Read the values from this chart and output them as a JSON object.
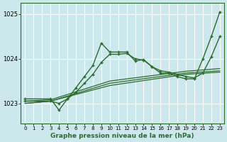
{
  "bg_color": "#cce8ec",
  "grid_color": "#ffffff",
  "line_color": "#2d6a2d",
  "xlabel": "Graphe pression niveau de la mer (hPa)",
  "xlim": [
    -0.5,
    23.5
  ],
  "ylim": [
    1022.55,
    1025.25
  ],
  "yticks": [
    1023,
    1024,
    1025
  ],
  "xticks": [
    0,
    1,
    2,
    3,
    4,
    5,
    6,
    7,
    8,
    9,
    10,
    11,
    12,
    13,
    14,
    15,
    16,
    17,
    18,
    19,
    20,
    21,
    22,
    23
  ],
  "series": [
    {
      "x": [
        0,
        3,
        10,
        19,
        23
      ],
      "y": [
        1023.0,
        1023.05,
        1023.4,
        1023.65,
        1023.7
      ],
      "lw": 0.9,
      "marker": null
    },
    {
      "x": [
        0,
        3,
        10,
        19,
        23
      ],
      "y": [
        1023.0,
        1023.05,
        1023.45,
        1023.68,
        1023.73
      ],
      "lw": 0.9,
      "marker": null
    },
    {
      "x": [
        0,
        3,
        10,
        19,
        23
      ],
      "y": [
        1023.05,
        1023.08,
        1023.5,
        1023.72,
        1023.78
      ],
      "lw": 0.9,
      "marker": null
    },
    {
      "x": [
        0,
        3,
        4,
        5,
        6,
        7,
        8,
        9,
        10,
        11,
        12,
        13,
        14,
        15,
        16,
        17,
        18,
        19,
        20,
        21,
        22,
        23
      ],
      "y": [
        1023.1,
        1023.1,
        1022.85,
        1023.1,
        1023.35,
        1023.6,
        1023.85,
        1024.35,
        1024.15,
        1024.15,
        1024.15,
        1023.95,
        1023.98,
        1023.82,
        1023.68,
        1023.68,
        1023.6,
        1023.55,
        1023.55,
        1024.0,
        1024.5,
        1025.05
      ],
      "lw": 1.0,
      "marker": "+"
    },
    {
      "x": [
        0,
        3,
        4,
        5,
        6,
        7,
        8,
        9,
        10,
        11,
        12,
        13,
        14,
        15,
        16,
        17,
        18,
        19,
        20,
        21,
        22,
        23
      ],
      "y": [
        1023.05,
        1023.05,
        1023.0,
        1023.1,
        1023.25,
        1023.45,
        1023.65,
        1023.92,
        1024.1,
        1024.1,
        1024.12,
        1024.0,
        1023.97,
        1023.82,
        1023.73,
        1023.7,
        1023.65,
        1023.6,
        1023.57,
        1023.68,
        1024.05,
        1024.5
      ],
      "lw": 1.0,
      "marker": "+"
    }
  ]
}
